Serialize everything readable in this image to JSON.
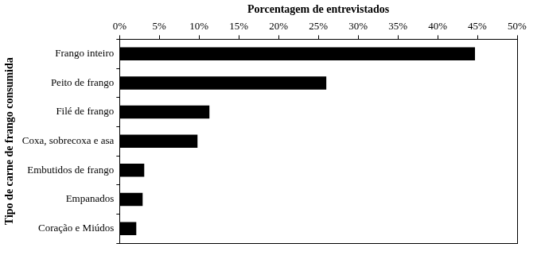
{
  "chart_data": {
    "type": "bar",
    "orientation": "horizontal",
    "xlabel": "Porcentagem de entrevistados",
    "ylabel": "Tipo de carne de frango consumida",
    "categories": [
      "Frango inteiro",
      "Peito de frango",
      "Filé de frango",
      "Coxa, sobrecoxa e asa",
      "Embutidos de frango",
      "Empanados",
      "Coração e Miúdos"
    ],
    "values": [
      44.7,
      26.0,
      11.3,
      9.8,
      3.1,
      2.9,
      2.1
    ],
    "color": "#000000",
    "xlim": [
      0,
      50
    ],
    "xticks": [
      {
        "value": 0,
        "label": "0%"
      },
      {
        "value": 5,
        "label": "5%"
      },
      {
        "value": 10,
        "label": "10%"
      },
      {
        "value": 15,
        "label": "15%"
      },
      {
        "value": 20,
        "label": "20%"
      },
      {
        "value": 25,
        "label": "25%"
      },
      {
        "value": 30,
        "label": "30%"
      },
      {
        "value": 35,
        "label": "35%"
      },
      {
        "value": 40,
        "label": "40%"
      },
      {
        "value": 45,
        "label": "45%"
      },
      {
        "value": 50,
        "label": "50%"
      }
    ],
    "grid": false
  }
}
